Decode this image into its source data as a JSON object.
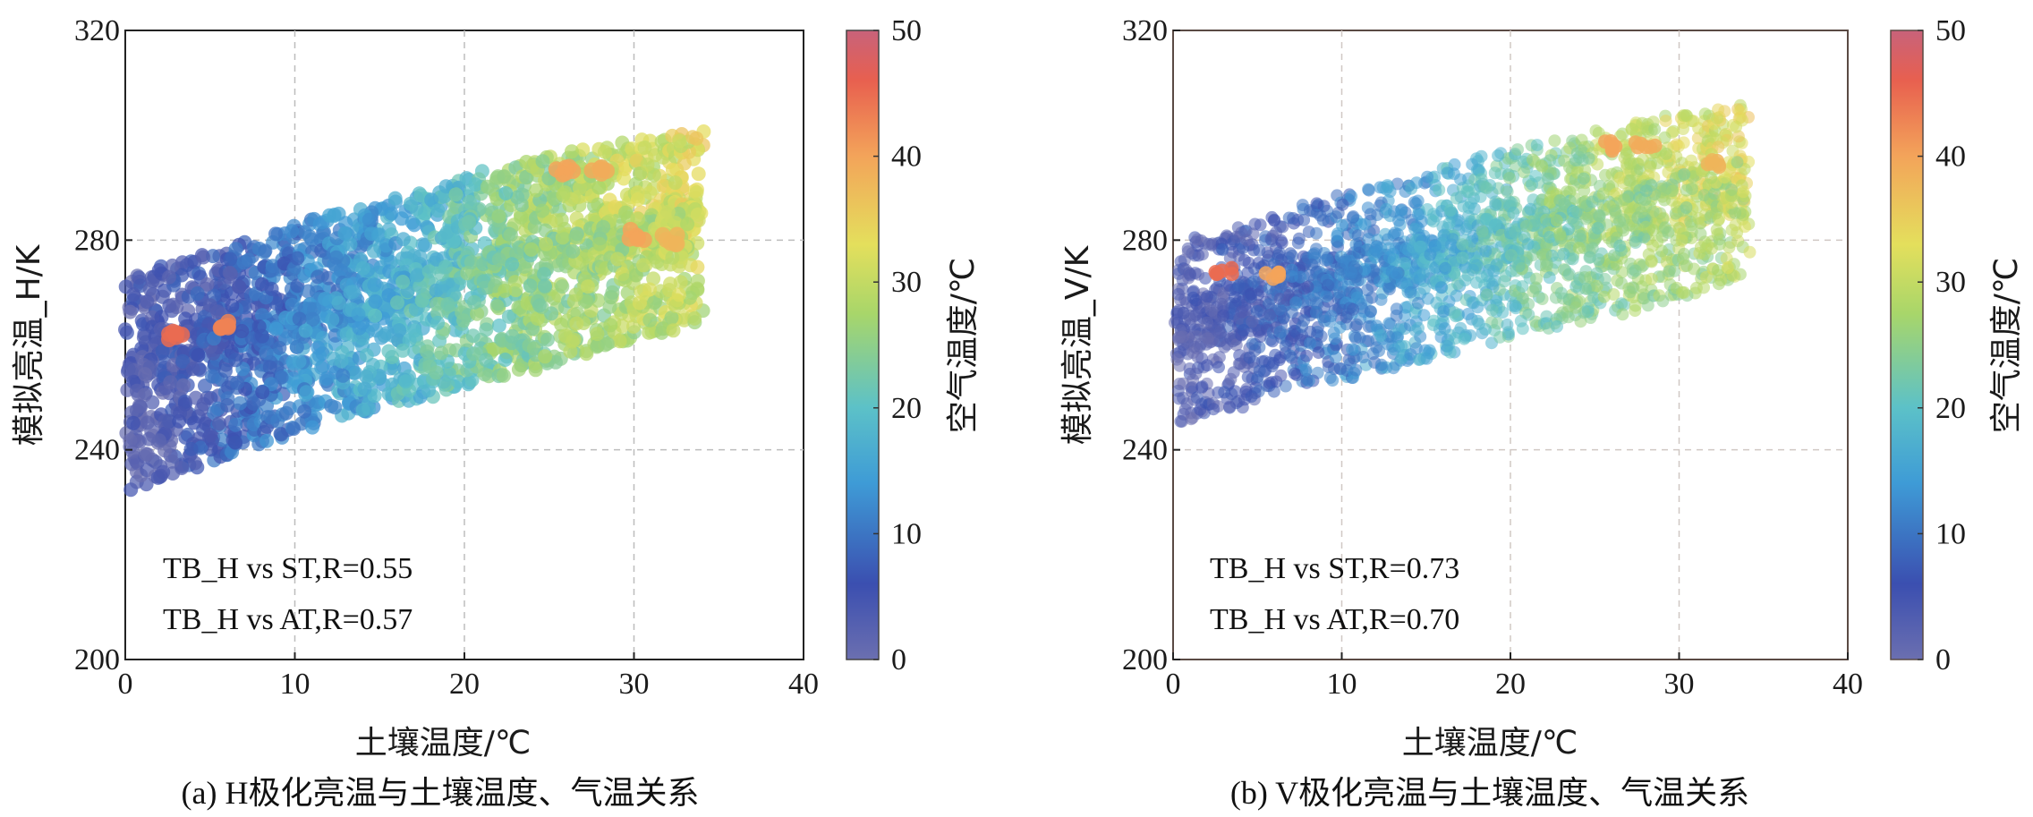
{
  "chart_data": [
    {
      "type": "scatter",
      "panel": "a",
      "caption": "(a) H极化亮温与土壤温度、气温关系",
      "xlabel": "土壤温度/℃",
      "ylabel": "模拟亮温_H/K",
      "xlim": [
        0,
        40
      ],
      "ylim": [
        200,
        320
      ],
      "xticks": [
        0,
        10,
        20,
        30,
        40
      ],
      "yticks": [
        200,
        240,
        280,
        320
      ],
      "grid": true,
      "colorbar": {
        "label": "空气温度/℃",
        "range": [
          0,
          50
        ],
        "ticks": [
          0,
          10,
          20,
          30,
          40,
          50
        ]
      },
      "annotations": [
        "TB_H vs ST,R=0.55",
        "TB_H vs AT,R=0.57"
      ],
      "series": [
        {
          "x": [
            0,
            2,
            4,
            6,
            8,
            10,
            12,
            14,
            16,
            18,
            20,
            22,
            24,
            26,
            28,
            30,
            32,
            34
          ],
          "y": [
            262,
            264,
            266,
            268,
            270,
            272,
            274,
            276,
            277,
            279,
            281,
            283,
            284,
            286,
            287,
            288,
            289,
            290
          ],
          "c": [
            3,
            4,
            5,
            6,
            8,
            10,
            12,
            14,
            16,
            18,
            21,
            24,
            26,
            28,
            30,
            31,
            32,
            33
          ]
        },
        {
          "x": [
            0,
            2,
            4,
            6,
            8,
            10,
            12,
            14,
            16,
            18,
            20,
            22,
            24,
            26,
            28,
            30,
            32,
            34
          ],
          "y": [
            244,
            246,
            248,
            251,
            253,
            255,
            257,
            259,
            261,
            262,
            264,
            266,
            267,
            269,
            271,
            273,
            274,
            276
          ],
          "c": [
            2,
            3,
            5,
            8,
            10,
            12,
            14,
            16,
            18,
            20,
            22,
            24,
            25,
            26,
            27,
            28,
            29,
            30
          ]
        }
      ],
      "highlights": [
        {
          "x": 3,
          "y": 262,
          "c": 45
        },
        {
          "x": 6,
          "y": 264,
          "c": 43
        },
        {
          "x": 26,
          "y": 293,
          "c": 40
        },
        {
          "x": 28,
          "y": 293,
          "c": 39
        },
        {
          "x": 30,
          "y": 281,
          "c": 40
        },
        {
          "x": 32,
          "y": 280,
          "c": 38
        }
      ]
    },
    {
      "type": "scatter",
      "panel": "b",
      "caption": "(b) V极化亮温与土壤温度、气温关系",
      "xlabel": "土壤温度/℃",
      "ylabel": "模拟亮温_V/K",
      "xlim": [
        0,
        40
      ],
      "ylim": [
        200,
        320
      ],
      "xticks": [
        0,
        10,
        20,
        30,
        40
      ],
      "yticks": [
        200,
        240,
        280,
        320
      ],
      "grid": true,
      "colorbar": {
        "label": "空气温度/℃",
        "range": [
          0,
          50
        ],
        "ticks": [
          0,
          10,
          20,
          30,
          40,
          50
        ]
      },
      "annotations": [
        "TB_H vs ST,R=0.73",
        "TB_H vs AT,R=0.70"
      ],
      "series": [
        {
          "x": [
            0,
            2,
            4,
            6,
            8,
            10,
            12,
            14,
            16,
            18,
            20,
            22,
            24,
            26,
            28,
            30,
            32,
            34
          ],
          "y": [
            268,
            270,
            272,
            274,
            276,
            278,
            279,
            281,
            283,
            285,
            286,
            288,
            289,
            291,
            292,
            293,
            294,
            295
          ],
          "c": [
            3,
            4,
            5,
            6,
            8,
            10,
            12,
            14,
            17,
            19,
            21,
            24,
            26,
            28,
            30,
            31,
            32,
            33
          ]
        },
        {
          "x": [
            0,
            2,
            4,
            6,
            8,
            10,
            12,
            14,
            16,
            18,
            20,
            22,
            24,
            26,
            28,
            30,
            32,
            34
          ],
          "y": [
            256,
            258,
            260,
            262,
            264,
            265,
            267,
            268,
            270,
            272,
            273,
            275,
            276,
            277,
            279,
            281,
            282,
            284
          ],
          "c": [
            2,
            3,
            5,
            7,
            9,
            11,
            13,
            15,
            17,
            19,
            21,
            23,
            24,
            25,
            26,
            27,
            28,
            29
          ]
        }
      ],
      "highlights": [
        {
          "x": 3,
          "y": 274,
          "c": 45
        },
        {
          "x": 6,
          "y": 273,
          "c": 40
        },
        {
          "x": 26,
          "y": 298,
          "c": 40
        },
        {
          "x": 28,
          "y": 298,
          "c": 39
        },
        {
          "x": 32,
          "y": 295,
          "c": 38
        }
      ]
    }
  ]
}
